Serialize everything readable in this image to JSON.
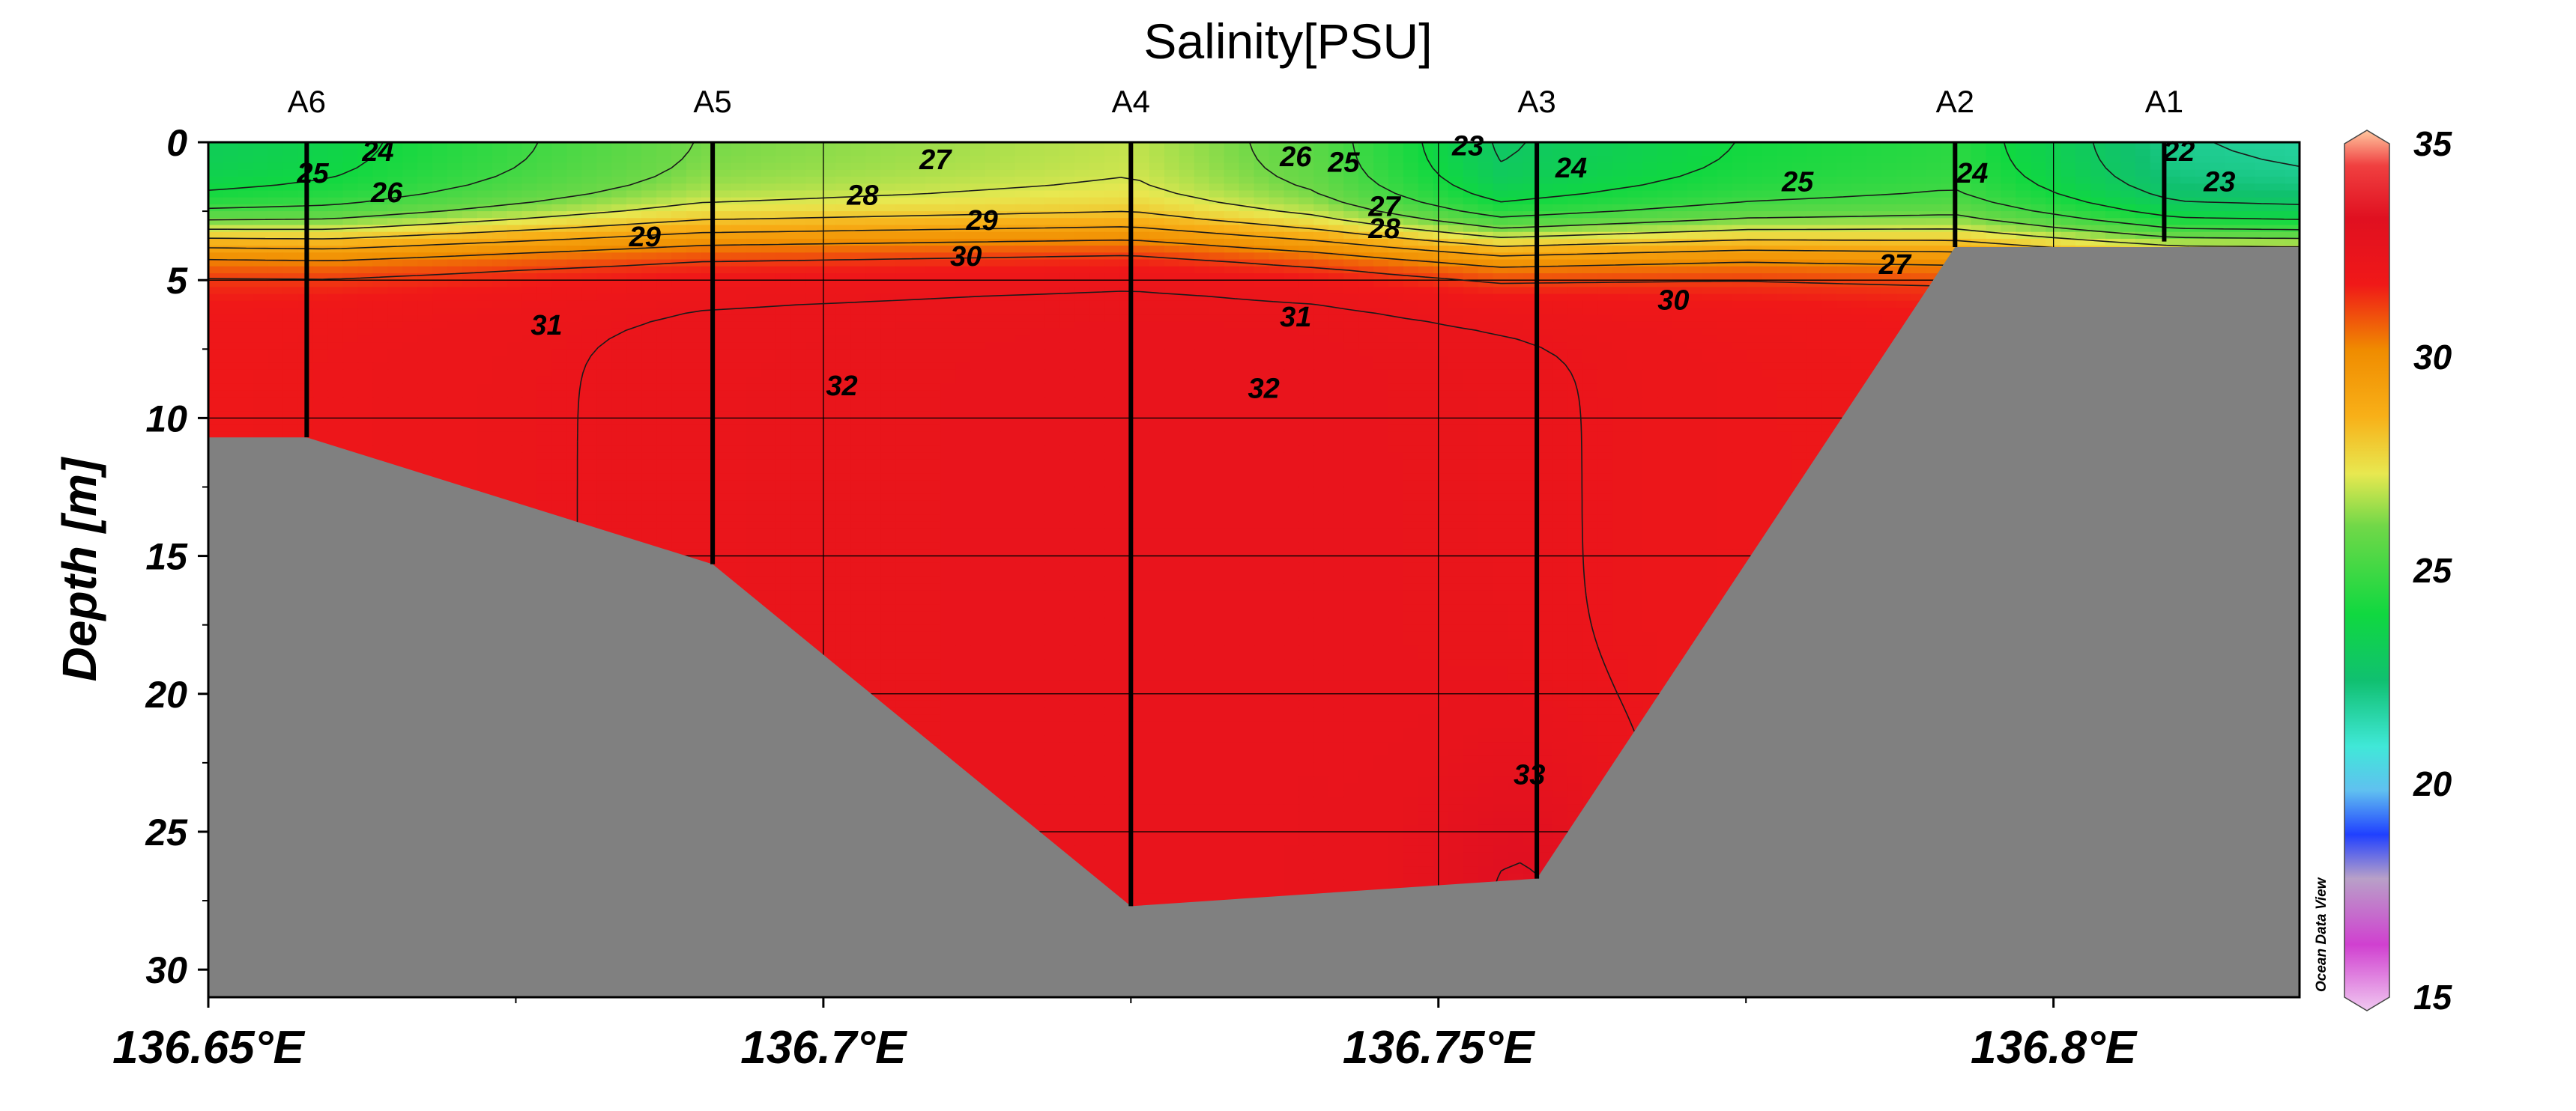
{
  "chart_data": {
    "type": "heatmap",
    "title": "Salinity[PSU]",
    "ylabel": "Depth [m]",
    "xlabel": "",
    "xlim": [
      136.65,
      136.82
    ],
    "ylim": [
      31,
      0
    ],
    "y_reversed": true,
    "grid": true,
    "x_ticks": [
      136.65,
      136.7,
      136.75,
      136.8
    ],
    "x_tick_labels": [
      "136.65°E",
      "136.7°E",
      "136.75°E",
      "136.8°E"
    ],
    "y_ticks": [
      0,
      5,
      10,
      15,
      20,
      25,
      30
    ],
    "y_tick_labels": [
      "0",
      "5",
      "10",
      "15",
      "20",
      "25",
      "30"
    ],
    "stations": [
      {
        "name": "A6",
        "lon": 136.658,
        "bottom_depth": 10.7
      },
      {
        "name": "A5",
        "lon": 136.691,
        "bottom_depth": 15.3
      },
      {
        "name": "A4",
        "lon": 136.725,
        "bottom_depth": 27.7
      },
      {
        "name": "A3",
        "lon": 136.758,
        "bottom_depth": 26.7
      },
      {
        "name": "A2",
        "lon": 136.792,
        "bottom_depth": 3.8
      },
      {
        "name": "A1",
        "lon": 136.809,
        "bottom_depth": 3.6
      }
    ],
    "bottom_profile": [
      [
        136.65,
        10.7
      ],
      [
        136.658,
        10.7
      ],
      [
        136.691,
        15.3
      ],
      [
        136.725,
        27.7
      ],
      [
        136.758,
        26.7
      ],
      [
        136.792,
        3.8
      ],
      [
        136.82,
        3.8
      ]
    ],
    "colorbar": {
      "range": [
        15,
        35
      ],
      "tick_values": [
        15,
        20,
        25,
        30,
        35
      ],
      "tick_labels": [
        "15",
        "20",
        "25",
        "30",
        "35"
      ],
      "stops": [
        {
          "value": 15,
          "color": "#f0c8f0"
        },
        {
          "value": 16.5,
          "color": "#d040d0"
        },
        {
          "value": 18,
          "color": "#b8a0c8"
        },
        {
          "value": 19,
          "color": "#2040ff"
        },
        {
          "value": 20,
          "color": "#60c0f0"
        },
        {
          "value": 21,
          "color": "#40e8d8"
        },
        {
          "value": 22.5,
          "color": "#10c070"
        },
        {
          "value": 24,
          "color": "#10d840"
        },
        {
          "value": 26,
          "color": "#70d848"
        },
        {
          "value": 27.2,
          "color": "#e8e850"
        },
        {
          "value": 28.5,
          "color": "#f8b018"
        },
        {
          "value": 30,
          "color": "#f08c00"
        },
        {
          "value": 31.5,
          "color": "#f01818"
        },
        {
          "value": 33,
          "color": "#e01020"
        },
        {
          "value": 34.2,
          "color": "#f04040"
        },
        {
          "value": 35,
          "color": "#ffc8a0"
        }
      ]
    },
    "contour_levels": [
      22,
      23,
      24,
      25,
      26,
      27,
      28,
      29,
      30,
      31,
      32,
      33
    ],
    "contour_labels": [
      {
        "text": "24",
        "lon": 136.6638,
        "depth": 0.4
      },
      {
        "text": "25",
        "lon": 136.6585,
        "depth": 1.2
      },
      {
        "text": "26",
        "lon": 136.6645,
        "depth": 1.9
      },
      {
        "text": "29",
        "lon": 136.6855,
        "depth": 3.5
      },
      {
        "text": "31",
        "lon": 136.6775,
        "depth": 6.7
      },
      {
        "text": "27",
        "lon": 136.7091,
        "depth": 0.7
      },
      {
        "text": "28",
        "lon": 136.7032,
        "depth": 2.0
      },
      {
        "text": "29",
        "lon": 136.7129,
        "depth": 2.9
      },
      {
        "text": "30",
        "lon": 136.7116,
        "depth": 4.2
      },
      {
        "text": "32",
        "lon": 136.7015,
        "depth": 8.9
      },
      {
        "text": "32",
        "lon": 136.7358,
        "depth": 9.0
      },
      {
        "text": "26",
        "lon": 136.7384,
        "depth": 0.6
      },
      {
        "text": "25",
        "lon": 136.7423,
        "depth": 0.8
      },
      {
        "text": "23",
        "lon": 136.7524,
        "depth": 0.2
      },
      {
        "text": "24",
        "lon": 136.7608,
        "depth": 1.0
      },
      {
        "text": "27",
        "lon": 136.7456,
        "depth": 2.4
      },
      {
        "text": "28",
        "lon": 136.7456,
        "depth": 3.2
      },
      {
        "text": "31",
        "lon": 136.7384,
        "depth": 6.4
      },
      {
        "text": "33",
        "lon": 136.7574,
        "depth": 23.0
      },
      {
        "text": "25",
        "lon": 136.7792,
        "depth": 1.5
      },
      {
        "text": "30",
        "lon": 136.7691,
        "depth": 5.8
      },
      {
        "text": "27",
        "lon": 136.7871,
        "depth": 4.5
      },
      {
        "text": "24",
        "lon": 136.7934,
        "depth": 1.2
      },
      {
        "text": "22",
        "lon": 136.8102,
        "depth": 0.4
      },
      {
        "text": "23",
        "lon": 136.8135,
        "depth": 1.5
      }
    ]
  },
  "watermark": "Ocean Data View"
}
